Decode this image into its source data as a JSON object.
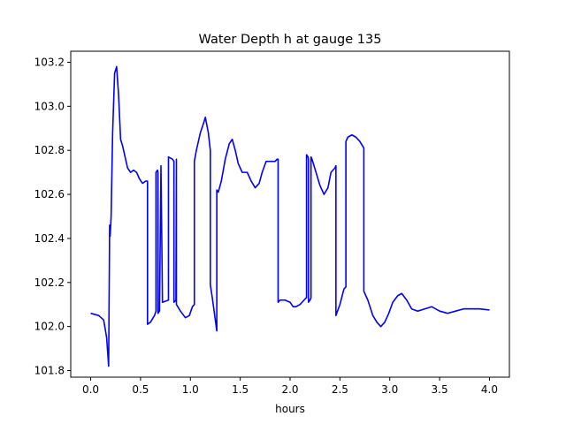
{
  "chart_data": {
    "type": "line",
    "title": "Water Depth h at gauge 135",
    "xlabel": "hours",
    "ylabel": "",
    "xlim": [
      -0.2,
      4.2
    ],
    "ylim": [
      101.77,
      103.25
    ],
    "xticks": [
      0.0,
      0.5,
      1.0,
      1.5,
      2.0,
      2.5,
      3.0,
      3.5,
      4.0
    ],
    "xtick_labels": [
      "0.0",
      "0.5",
      "1.0",
      "1.5",
      "2.0",
      "2.5",
      "3.0",
      "3.5",
      "4.0"
    ],
    "yticks": [
      101.8,
      102.0,
      102.2,
      102.4,
      102.6,
      102.8,
      103.0,
      103.2
    ],
    "ytick_labels": [
      "101.8",
      "102.0",
      "102.2",
      "102.4",
      "102.6",
      "102.8",
      "103.0",
      "103.2"
    ],
    "grid": false,
    "line_color": "#0000ff",
    "series": [
      {
        "x": [
          0.0,
          0.08,
          0.13,
          0.16,
          0.18,
          0.19,
          0.19,
          0.195,
          0.205,
          0.22,
          0.24,
          0.26,
          0.28,
          0.3,
          0.32,
          0.34,
          0.37,
          0.4,
          0.43,
          0.46,
          0.49,
          0.52,
          0.55,
          0.57,
          0.57,
          0.6,
          0.64,
          0.655,
          0.655,
          0.67,
          0.675,
          0.675,
          0.69,
          0.705,
          0.705,
          0.72,
          0.78,
          0.78,
          0.82,
          0.835,
          0.835,
          0.855,
          0.86,
          0.86,
          0.9,
          0.95,
          0.99,
          1.02,
          1.04,
          1.04,
          1.06,
          1.1,
          1.13,
          1.15,
          1.18,
          1.2,
          1.2,
          1.22,
          1.25,
          1.265,
          1.265,
          1.28,
          1.31,
          1.35,
          1.39,
          1.42,
          1.45,
          1.48,
          1.52,
          1.57,
          1.61,
          1.65,
          1.69,
          1.72,
          1.76,
          1.8,
          1.85,
          1.87,
          1.88,
          1.88,
          1.9,
          1.95,
          2.0,
          2.03,
          2.06,
          2.1,
          2.14,
          2.16,
          2.165,
          2.165,
          2.18,
          2.185,
          2.185,
          2.2,
          2.21,
          2.21,
          2.22,
          2.26,
          2.3,
          2.34,
          2.38,
          2.41,
          2.45,
          2.46,
          2.46,
          2.5,
          2.54,
          2.56,
          2.56,
          2.58,
          2.62,
          2.66,
          2.7,
          2.74,
          2.74,
          2.78,
          2.83,
          2.87,
          2.91,
          2.95,
          2.99,
          3.03,
          3.08,
          3.12,
          3.17,
          3.22,
          3.28,
          3.35,
          3.42,
          3.5,
          3.58,
          3.66,
          3.74,
          3.82,
          3.9,
          4.0
        ],
        "y": [
          102.06,
          102.05,
          102.03,
          101.95,
          101.82,
          102.46,
          102.45,
          102.41,
          102.5,
          102.88,
          103.15,
          103.18,
          103.05,
          102.85,
          102.82,
          102.78,
          102.72,
          102.7,
          102.71,
          102.7,
          102.67,
          102.65,
          102.66,
          102.66,
          102.01,
          102.02,
          102.05,
          102.07,
          102.7,
          102.71,
          102.7,
          102.06,
          102.07,
          102.73,
          102.72,
          102.11,
          102.12,
          102.77,
          102.76,
          102.75,
          102.11,
          102.12,
          102.76,
          102.1,
          102.07,
          102.04,
          102.05,
          102.09,
          102.1,
          102.75,
          102.8,
          102.88,
          102.92,
          102.95,
          102.88,
          102.8,
          102.19,
          102.13,
          102.03,
          101.98,
          102.62,
          102.61,
          102.66,
          102.76,
          102.83,
          102.85,
          102.8,
          102.74,
          102.7,
          102.7,
          102.66,
          102.63,
          102.65,
          102.7,
          102.75,
          102.75,
          102.75,
          102.76,
          102.76,
          102.11,
          102.12,
          102.12,
          102.11,
          102.09,
          102.09,
          102.1,
          102.12,
          102.13,
          102.13,
          102.78,
          102.77,
          102.76,
          102.11,
          102.12,
          102.13,
          102.77,
          102.76,
          102.7,
          102.64,
          102.6,
          102.63,
          102.7,
          102.72,
          102.73,
          102.05,
          102.1,
          102.17,
          102.18,
          102.84,
          102.86,
          102.87,
          102.86,
          102.84,
          102.81,
          102.16,
          102.12,
          102.05,
          102.02,
          102.0,
          102.02,
          102.06,
          102.11,
          102.14,
          102.15,
          102.12,
          102.08,
          102.07,
          102.08,
          102.09,
          102.07,
          102.06,
          102.07,
          102.08,
          102.08,
          102.08,
          102.075
        ]
      }
    ]
  }
}
